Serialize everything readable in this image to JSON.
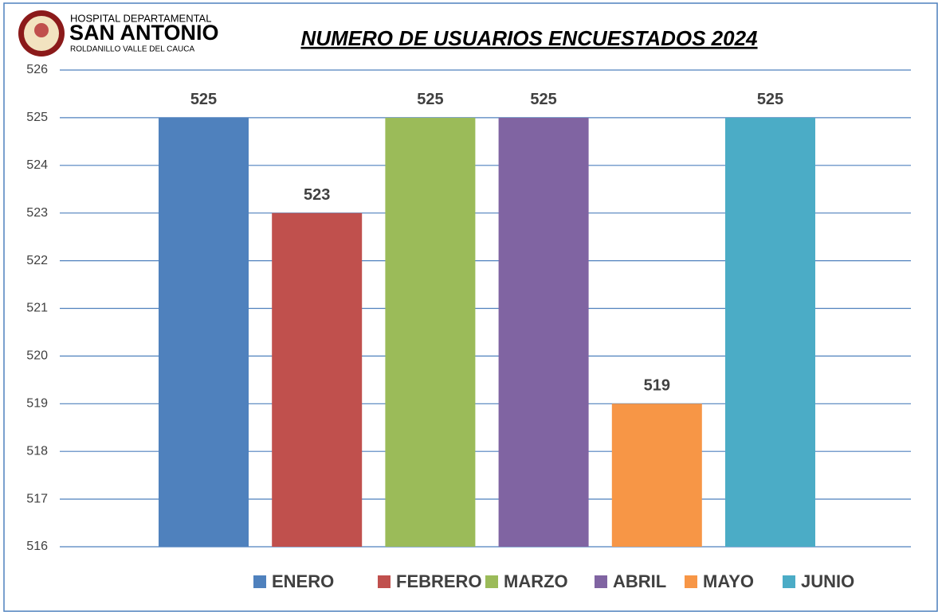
{
  "header": {
    "logo_line1": "HOSPITAL DEPARTAMENTAL",
    "logo_line2": "SAN ANTONIO",
    "logo_line3": "ROLDANILLO VALLE DEL CAUCA"
  },
  "chart_data": {
    "type": "bar",
    "title": "NUMERO DE USUARIOS ENCUESTADOS 2024",
    "series": [
      {
        "name": "ENERO",
        "color": "#4f81bd",
        "values": [
          525
        ]
      },
      {
        "name": "FEBRERO",
        "color": "#c0504d",
        "values": [
          523
        ]
      },
      {
        "name": "MARZO",
        "color": "#9bbb59",
        "values": [
          525
        ]
      },
      {
        "name": "ABRIL",
        "color": "#8064a2",
        "values": [
          525
        ]
      },
      {
        "name": "MAYO",
        "color": "#f79646",
        "values": [
          519
        ]
      },
      {
        "name": "JUNIO",
        "color": "#4bacc6",
        "values": [
          525
        ]
      }
    ],
    "ylim": [
      516,
      526
    ],
    "yticks": [
      516,
      517,
      518,
      519,
      520,
      521,
      522,
      523,
      524,
      525,
      526
    ],
    "grid": true,
    "legend": "bottom"
  }
}
